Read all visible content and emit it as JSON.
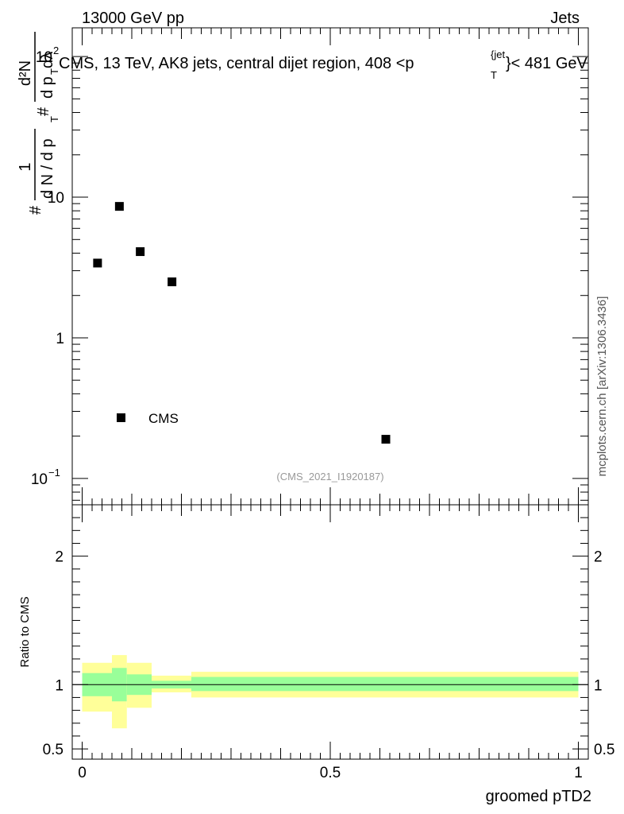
{
  "header": {
    "left": "13000 GeV pp",
    "right": "Jets"
  },
  "title": {
    "main": "CMS, 13 TeV, AK8 jets, central dijet region, 408 <p",
    "sup": "{jet",
    "sub": "T",
    "tail": "}< 481 GeV"
  },
  "side_label": "mcplots.cern.ch [arXiv:1306.3436]",
  "watermark": "(CMS_2021_I1920187)",
  "colors": {
    "band_outer": "#ffff99",
    "band_inner": "#99ff99",
    "marker": "#000000",
    "watermark": "#999999"
  },
  "chart_data": [
    {
      "type": "scatter",
      "title": "CMS, 13 TeV, AK8 jets, central dijet region, 408 <p_T^{jet}< 481 GeV",
      "ylabel": {
        "prefix": "#",
        "frac_num": "1",
        "frac_den": "d N / d p",
        "frac_den_sub": "T",
        "hash2": "#",
        "frac2_num": "d²N",
        "frac2_den": "d p",
        "frac2_den_sub": "T",
        "frac2_den_tail": " dλ"
      },
      "yscale": "log",
      "ylim": [
        0.065,
        160
      ],
      "xlim": [
        -0.02,
        1.02
      ],
      "y_ticks": [
        {
          "value": 100,
          "label": "10",
          "sup": "2"
        },
        {
          "value": 10,
          "label": "10",
          "sup": ""
        },
        {
          "value": 1,
          "label": "1",
          "sup": ""
        },
        {
          "value": 0.1,
          "label": "10",
          "sup": "−1"
        }
      ],
      "series": [
        {
          "name": "CMS",
          "x": [
            0.031,
            0.075,
            0.117,
            0.181,
            0.612
          ],
          "y": [
            3.4,
            8.6,
            4.1,
            2.5,
            0.19
          ]
        }
      ],
      "legend": {
        "label": "CMS",
        "position": "bottom-left"
      }
    },
    {
      "type": "area",
      "ylabel": "Ratio to CMS",
      "xlabel": "groomed pTD2",
      "ylim": [
        0.42,
        2.4
      ],
      "xlim": [
        -0.02,
        1.02
      ],
      "x_ticks": [
        {
          "value": 0,
          "label": "0"
        },
        {
          "value": 0.5,
          "label": "0.5"
        },
        {
          "value": 1,
          "label": "1"
        }
      ],
      "y_ticks": [
        {
          "value": 0.5,
          "label": "0.5"
        },
        {
          "value": 1,
          "label": "1"
        },
        {
          "value": 2,
          "label": "2"
        }
      ],
      "reference_line": 1,
      "bins": [
        {
          "x0": 0.0,
          "x1": 0.06,
          "outer": [
            0.79,
            1.17
          ],
          "inner": [
            0.91,
            1.09
          ]
        },
        {
          "x0": 0.06,
          "x1": 0.09,
          "outer": [
            0.66,
            1.23
          ],
          "inner": [
            0.87,
            1.13
          ]
        },
        {
          "x0": 0.09,
          "x1": 0.14,
          "outer": [
            0.82,
            1.17
          ],
          "inner": [
            0.92,
            1.08
          ]
        },
        {
          "x0": 0.14,
          "x1": 0.22,
          "outer": [
            0.94,
            1.07
          ],
          "inner": [
            0.97,
            1.03
          ]
        },
        {
          "x0": 0.22,
          "x1": 1.0,
          "outer": [
            0.9,
            1.1
          ],
          "inner": [
            0.95,
            1.06
          ]
        }
      ]
    }
  ]
}
